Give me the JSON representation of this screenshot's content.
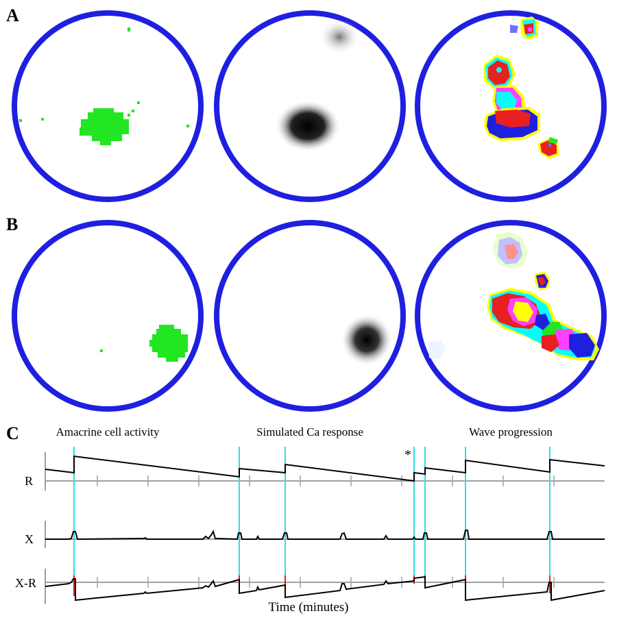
{
  "panels": {
    "a_label": "A",
    "b_label": "B",
    "c_label": "C"
  },
  "captions": {
    "col1": "Amacrine cell activity",
    "col2": "Simulated Ca response",
    "col3": "Wave progression"
  },
  "traces": {
    "row_labels": [
      "R",
      "X",
      "X-R"
    ],
    "x_axis_label": "Time (minutes)",
    "event_marker": "*"
  },
  "colors": {
    "border_blue": "#1f1fe0",
    "activity_green": "#22e622",
    "event_cyan": "#33dddd",
    "event_red": "#e02020",
    "axis_gray": "#a0a0a0"
  }
}
